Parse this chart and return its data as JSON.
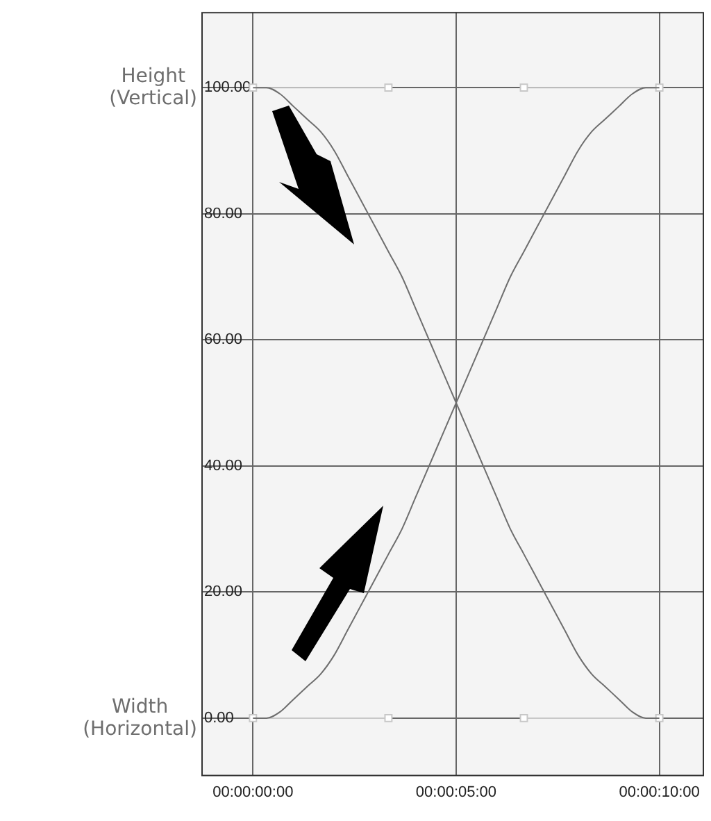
{
  "chart_data": {
    "type": "line",
    "categories": [
      "00:00:00:00",
      null,
      null,
      null,
      null,
      null,
      null,
      null,
      null,
      null,
      null,
      null,
      null,
      null,
      null,
      "00:00:05:00",
      null,
      null,
      null,
      null,
      null,
      null,
      null,
      null,
      null,
      null,
      null,
      null,
      null,
      null,
      "00:00:10:00"
    ],
    "series": [
      {
        "name": "Height\n(Vertical)",
        "color": "#6e6e6e",
        "values": [
          100,
          100,
          99,
          97,
          95,
          93,
          90,
          86,
          82,
          78,
          74,
          70,
          65,
          60,
          55,
          50,
          45,
          40,
          35,
          30,
          26,
          22,
          18,
          14,
          10,
          7,
          5,
          3,
          1,
          0,
          0
        ]
      },
      {
        "name": "Width\n(Horizontal)",
        "color": "#6e6e6e",
        "values": [
          0,
          0,
          1,
          3,
          5,
          7,
          10,
          14,
          18,
          22,
          26,
          30,
          35,
          40,
          45,
          50,
          55,
          60,
          65,
          70,
          74,
          78,
          82,
          86,
          90,
          93,
          95,
          97,
          99,
          100,
          100
        ]
      },
      {
        "color": "#c8c8c8",
        "marker": "square",
        "values": [
          100,
          null,
          null,
          null,
          null,
          null,
          null,
          null,
          null,
          null,
          100,
          null,
          null,
          null,
          null,
          null,
          null,
          null,
          null,
          null,
          null,
          null,
          null,
          null,
          null,
          null,
          null,
          null,
          null,
          null,
          null
        ]
      },
      {
        "color": "#c8c8c8",
        "marker": "square",
        "values": [
          null,
          null,
          null,
          null,
          null,
          null,
          null,
          null,
          null,
          null,
          null,
          null,
          null,
          null,
          null,
          null,
          null,
          null,
          null,
          null,
          100,
          null,
          null,
          null,
          null,
          null,
          null,
          null,
          null,
          null,
          100
        ]
      },
      {
        "color": "#c8c8c8",
        "marker": "square",
        "values": [
          0,
          null,
          null,
          null,
          null,
          null,
          null,
          null,
          null,
          null,
          0,
          null,
          null,
          null,
          null,
          null,
          null,
          null,
          null,
          null,
          null,
          null,
          null,
          null,
          null,
          null,
          null,
          null,
          null,
          null,
          null
        ]
      },
      {
        "color": "#c8c8c8",
        "marker": "square",
        "values": [
          null,
          null,
          null,
          null,
          null,
          null,
          null,
          null,
          null,
          null,
          null,
          null,
          null,
          null,
          null,
          null,
          null,
          null,
          null,
          null,
          0,
          null,
          null,
          null,
          null,
          null,
          null,
          null,
          null,
          null,
          0
        ]
      }
    ],
    "ylim": [
      -9,
      112
    ],
    "yticks": [
      {
        "value": 0,
        "label": "0.00"
      },
      {
        "value": 20,
        "label": "20.00"
      },
      {
        "value": 40,
        "label": "40.00"
      },
      {
        "value": 60,
        "label": "60.00"
      },
      {
        "value": 80,
        "label": "80.00"
      },
      {
        "value": 100,
        "label": "100.00"
      }
    ],
    "grid": true,
    "legend": false,
    "marker": "none",
    "line_style": "solid"
  }
}
